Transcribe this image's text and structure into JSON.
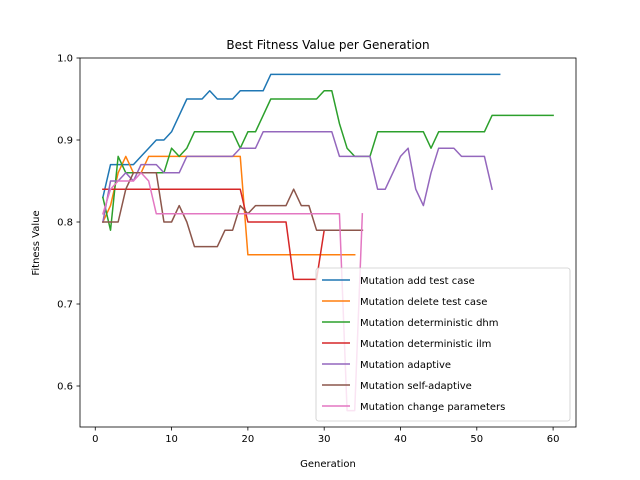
{
  "chart_data": {
    "type": "line",
    "title": "Best Fitness Value per Generation",
    "xlabel": "Generation",
    "ylabel": "Fitness Value",
    "xlim": [
      -2,
      63
    ],
    "ylim": [
      0.55,
      1.0
    ],
    "xticks": [
      0,
      10,
      20,
      30,
      40,
      50,
      60
    ],
    "yticks": [
      0.6,
      0.7,
      0.8,
      0.9,
      1.0
    ],
    "xtick_labels": [
      "0",
      "10",
      "20",
      "30",
      "40",
      "50",
      "60"
    ],
    "ytick_labels": [
      "0.6",
      "0.7",
      "0.8",
      "0.9",
      "1.0"
    ],
    "legend_position": "lower-right",
    "grid": false,
    "series": [
      {
        "name": "Mutation add test case",
        "color": "#1f77b4",
        "points": [
          [
            1,
            0.83
          ],
          [
            2,
            0.87
          ],
          [
            3,
            0.87
          ],
          [
            4,
            0.87
          ],
          [
            5,
            0.87
          ],
          [
            6,
            0.88
          ],
          [
            7,
            0.89
          ],
          [
            8,
            0.9
          ],
          [
            9,
            0.9
          ],
          [
            10,
            0.91
          ],
          [
            11,
            0.93
          ],
          [
            12,
            0.95
          ],
          [
            13,
            0.95
          ],
          [
            14,
            0.95
          ],
          [
            15,
            0.96
          ],
          [
            16,
            0.95
          ],
          [
            17,
            0.95
          ],
          [
            18,
            0.95
          ],
          [
            19,
            0.96
          ],
          [
            20,
            0.96
          ],
          [
            21,
            0.96
          ],
          [
            22,
            0.96
          ],
          [
            23,
            0.98
          ],
          [
            30,
            0.98
          ],
          [
            40,
            0.98
          ],
          [
            50,
            0.98
          ],
          [
            53,
            0.98
          ]
        ]
      },
      {
        "name": "Mutation delete test case",
        "color": "#ff7f0e",
        "points": [
          [
            1,
            0.8
          ],
          [
            2,
            0.82
          ],
          [
            3,
            0.86
          ],
          [
            4,
            0.88
          ],
          [
            5,
            0.86
          ],
          [
            6,
            0.86
          ],
          [
            7,
            0.88
          ],
          [
            8,
            0.88
          ],
          [
            9,
            0.88
          ],
          [
            10,
            0.88
          ],
          [
            11,
            0.88
          ],
          [
            12,
            0.88
          ],
          [
            13,
            0.88
          ],
          [
            14,
            0.88
          ],
          [
            15,
            0.88
          ],
          [
            16,
            0.88
          ],
          [
            17,
            0.88
          ],
          [
            18,
            0.88
          ],
          [
            19,
            0.88
          ],
          [
            20,
            0.76
          ],
          [
            21,
            0.76
          ],
          [
            25,
            0.76
          ],
          [
            30,
            0.76
          ],
          [
            34,
            0.76
          ]
        ]
      },
      {
        "name": "Mutation deterministic dhm",
        "color": "#2ca02c",
        "points": [
          [
            1,
            0.83
          ],
          [
            2,
            0.79
          ],
          [
            3,
            0.88
          ],
          [
            4,
            0.86
          ],
          [
            5,
            0.86
          ],
          [
            6,
            0.86
          ],
          [
            7,
            0.86
          ],
          [
            8,
            0.86
          ],
          [
            9,
            0.86
          ],
          [
            10,
            0.89
          ],
          [
            11,
            0.88
          ],
          [
            12,
            0.89
          ],
          [
            13,
            0.91
          ],
          [
            14,
            0.91
          ],
          [
            15,
            0.91
          ],
          [
            16,
            0.91
          ],
          [
            17,
            0.91
          ],
          [
            18,
            0.91
          ],
          [
            19,
            0.89
          ],
          [
            20,
            0.91
          ],
          [
            21,
            0.91
          ],
          [
            22,
            0.93
          ],
          [
            23,
            0.95
          ],
          [
            24,
            0.95
          ],
          [
            25,
            0.95
          ],
          [
            26,
            0.95
          ],
          [
            27,
            0.95
          ],
          [
            28,
            0.95
          ],
          [
            29,
            0.95
          ],
          [
            30,
            0.96
          ],
          [
            31,
            0.96
          ],
          [
            32,
            0.92
          ],
          [
            33,
            0.89
          ],
          [
            34,
            0.88
          ],
          [
            35,
            0.88
          ],
          [
            36,
            0.88
          ],
          [
            37,
            0.91
          ],
          [
            38,
            0.91
          ],
          [
            39,
            0.91
          ],
          [
            40,
            0.91
          ],
          [
            41,
            0.91
          ],
          [
            42,
            0.91
          ],
          [
            43,
            0.91
          ],
          [
            44,
            0.89
          ],
          [
            45,
            0.91
          ],
          [
            46,
            0.91
          ],
          [
            47,
            0.91
          ],
          [
            48,
            0.91
          ],
          [
            49,
            0.91
          ],
          [
            50,
            0.91
          ],
          [
            51,
            0.91
          ],
          [
            52,
            0.93
          ],
          [
            53,
            0.93
          ],
          [
            54,
            0.93
          ],
          [
            55,
            0.93
          ],
          [
            56,
            0.93
          ],
          [
            57,
            0.93
          ],
          [
            58,
            0.93
          ],
          [
            59,
            0.93
          ],
          [
            60,
            0.93
          ]
        ]
      },
      {
        "name": "Mutation deterministic ilm",
        "color": "#d62728",
        "points": [
          [
            1,
            0.84
          ],
          [
            2,
            0.84
          ],
          [
            3,
            0.84
          ],
          [
            4,
            0.84
          ],
          [
            5,
            0.84
          ],
          [
            6,
            0.84
          ],
          [
            7,
            0.84
          ],
          [
            8,
            0.84
          ],
          [
            9,
            0.84
          ],
          [
            10,
            0.84
          ],
          [
            11,
            0.84
          ],
          [
            12,
            0.84
          ],
          [
            13,
            0.84
          ],
          [
            14,
            0.84
          ],
          [
            15,
            0.84
          ],
          [
            16,
            0.84
          ],
          [
            17,
            0.84
          ],
          [
            18,
            0.84
          ],
          [
            19,
            0.84
          ],
          [
            20,
            0.8
          ],
          [
            21,
            0.8
          ],
          [
            22,
            0.8
          ],
          [
            23,
            0.8
          ],
          [
            24,
            0.8
          ],
          [
            25,
            0.8
          ],
          [
            26,
            0.73
          ],
          [
            27,
            0.73
          ],
          [
            28,
            0.73
          ],
          [
            29,
            0.73
          ],
          [
            30,
            0.79
          ],
          [
            31,
            0.79
          ],
          [
            32,
            0.79
          ],
          [
            33,
            0.79
          ],
          [
            34,
            0.79
          ],
          [
            35,
            0.79
          ]
        ]
      },
      {
        "name": "Mutation adaptive",
        "color": "#9467bd",
        "points": [
          [
            1,
            0.8
          ],
          [
            2,
            0.85
          ],
          [
            3,
            0.85
          ],
          [
            4,
            0.86
          ],
          [
            5,
            0.85
          ],
          [
            6,
            0.87
          ],
          [
            7,
            0.87
          ],
          [
            8,
            0.87
          ],
          [
            9,
            0.86
          ],
          [
            10,
            0.86
          ],
          [
            11,
            0.86
          ],
          [
            12,
            0.88
          ],
          [
            13,
            0.88
          ],
          [
            14,
            0.88
          ],
          [
            15,
            0.88
          ],
          [
            16,
            0.88
          ],
          [
            17,
            0.88
          ],
          [
            18,
            0.88
          ],
          [
            19,
            0.89
          ],
          [
            20,
            0.89
          ],
          [
            21,
            0.89
          ],
          [
            22,
            0.91
          ],
          [
            23,
            0.91
          ],
          [
            24,
            0.91
          ],
          [
            25,
            0.91
          ],
          [
            26,
            0.91
          ],
          [
            27,
            0.91
          ],
          [
            28,
            0.91
          ],
          [
            29,
            0.91
          ],
          [
            30,
            0.91
          ],
          [
            31,
            0.91
          ],
          [
            32,
            0.88
          ],
          [
            33,
            0.88
          ],
          [
            34,
            0.88
          ],
          [
            35,
            0.88
          ],
          [
            36,
            0.88
          ],
          [
            37,
            0.84
          ],
          [
            38,
            0.84
          ],
          [
            39,
            0.86
          ],
          [
            40,
            0.88
          ],
          [
            41,
            0.89
          ],
          [
            42,
            0.84
          ],
          [
            43,
            0.82
          ],
          [
            44,
            0.86
          ],
          [
            45,
            0.89
          ],
          [
            46,
            0.89
          ],
          [
            47,
            0.89
          ],
          [
            48,
            0.88
          ],
          [
            49,
            0.88
          ],
          [
            50,
            0.88
          ],
          [
            51,
            0.88
          ],
          [
            52,
            0.84
          ]
        ]
      },
      {
        "name": "Mutation self-adaptive",
        "color": "#8c564b",
        "points": [
          [
            1,
            0.8
          ],
          [
            2,
            0.8
          ],
          [
            3,
            0.8
          ],
          [
            4,
            0.84
          ],
          [
            5,
            0.86
          ],
          [
            6,
            0.86
          ],
          [
            7,
            0.86
          ],
          [
            8,
            0.86
          ],
          [
            9,
            0.8
          ],
          [
            10,
            0.8
          ],
          [
            11,
            0.82
          ],
          [
            12,
            0.8
          ],
          [
            13,
            0.77
          ],
          [
            14,
            0.77
          ],
          [
            15,
            0.77
          ],
          [
            16,
            0.77
          ],
          [
            17,
            0.79
          ],
          [
            18,
            0.79
          ],
          [
            19,
            0.82
          ],
          [
            20,
            0.81
          ],
          [
            21,
            0.82
          ],
          [
            22,
            0.82
          ],
          [
            23,
            0.82
          ],
          [
            24,
            0.82
          ],
          [
            25,
            0.82
          ],
          [
            26,
            0.84
          ],
          [
            27,
            0.82
          ],
          [
            28,
            0.82
          ],
          [
            29,
            0.79
          ],
          [
            30,
            0.79
          ],
          [
            31,
            0.79
          ],
          [
            32,
            0.79
          ],
          [
            33,
            0.79
          ],
          [
            34,
            0.79
          ],
          [
            35,
            0.79
          ]
        ]
      },
      {
        "name": "Mutation change parameters",
        "color": "#e377c2",
        "points": [
          [
            1,
            0.81
          ],
          [
            2,
            0.84
          ],
          [
            3,
            0.85
          ],
          [
            4,
            0.85
          ],
          [
            5,
            0.85
          ],
          [
            6,
            0.86
          ],
          [
            7,
            0.85
          ],
          [
            8,
            0.81
          ],
          [
            9,
            0.81
          ],
          [
            10,
            0.81
          ],
          [
            11,
            0.81
          ],
          [
            12,
            0.81
          ],
          [
            13,
            0.81
          ],
          [
            14,
            0.81
          ],
          [
            15,
            0.81
          ],
          [
            16,
            0.81
          ],
          [
            17,
            0.81
          ],
          [
            18,
            0.81
          ],
          [
            19,
            0.81
          ],
          [
            20,
            0.81
          ],
          [
            21,
            0.81
          ],
          [
            22,
            0.81
          ],
          [
            23,
            0.81
          ],
          [
            24,
            0.81
          ],
          [
            25,
            0.81
          ],
          [
            26,
            0.81
          ],
          [
            27,
            0.81
          ],
          [
            28,
            0.81
          ],
          [
            29,
            0.81
          ],
          [
            30,
            0.81
          ],
          [
            31,
            0.81
          ],
          [
            32,
            0.81
          ],
          [
            33,
            0.57
          ],
          [
            34,
            0.57
          ],
          [
            35,
            0.81
          ]
        ]
      }
    ]
  }
}
